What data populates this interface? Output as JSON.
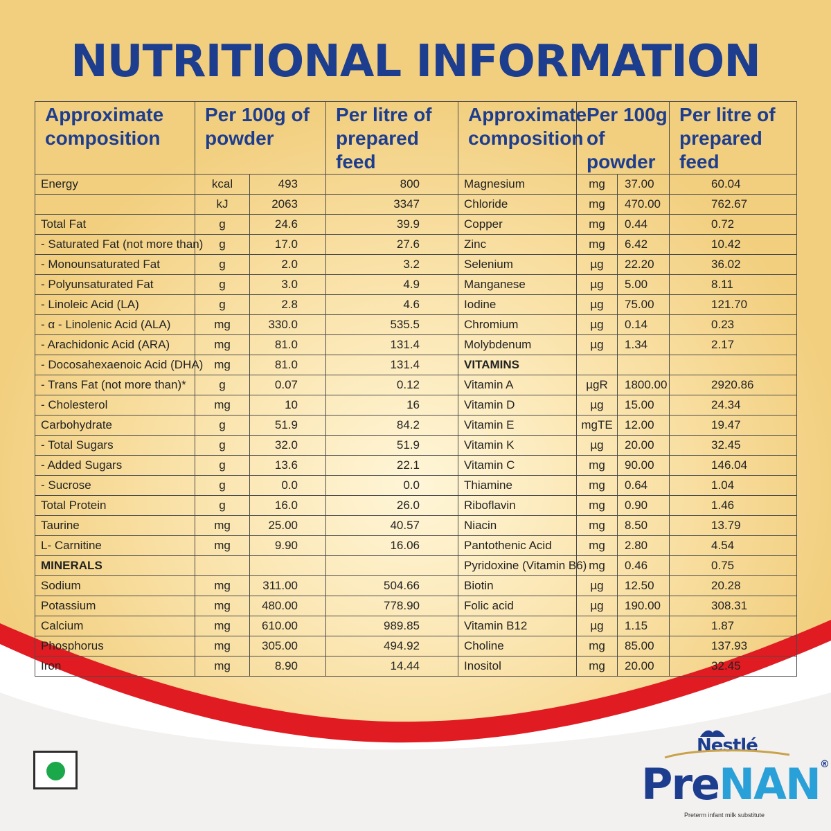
{
  "title": "NUTRITIONAL INFORMATION",
  "colors": {
    "title": "#1d3d8f",
    "accent_red": "#e11b22",
    "veg_dot": "#1aa84a",
    "gold": "#f2cf7f"
  },
  "headers": {
    "composition": "Approximate composition",
    "per100": "Per 100g of powder",
    "perlitre": "Per litre of prepared feed"
  },
  "left_rows": [
    {
      "name": "Energy",
      "unit": "kcal",
      "per100": "493",
      "perlitre": "800"
    },
    {
      "name": "",
      "unit": "kJ",
      "per100": "2063",
      "perlitre": "3347"
    },
    {
      "name": "Total Fat",
      "unit": "g",
      "per100": "24.6",
      "perlitre": "39.9"
    },
    {
      "name": "- Saturated Fat (not more than)",
      "unit": "g",
      "per100": "17.0",
      "perlitre": "27.6"
    },
    {
      "name": "- Monounsaturated Fat",
      "unit": "g",
      "per100": "2.0",
      "perlitre": "3.2"
    },
    {
      "name": "- Polyunsaturated Fat",
      "unit": "g",
      "per100": "3.0",
      "perlitre": "4.9"
    },
    {
      "name": "- Linoleic Acid (LA)",
      "unit": "g",
      "per100": "2.8",
      "perlitre": "4.6"
    },
    {
      "name": "- α - Linolenic Acid (ALA)",
      "unit": "mg",
      "per100": "330.0",
      "perlitre": "535.5"
    },
    {
      "name": "- Arachidonic Acid (ARA)",
      "unit": "mg",
      "per100": "81.0",
      "perlitre": "131.4"
    },
    {
      "name": "- Docosahexaenoic Acid (DHA)",
      "unit": "mg",
      "per100": "81.0",
      "perlitre": "131.4"
    },
    {
      "name": "- Trans Fat (not more than)*",
      "unit": "g",
      "per100": "0.07",
      "perlitre": "0.12"
    },
    {
      "name": "- Cholesterol",
      "unit": "mg",
      "per100": "10",
      "perlitre": "16"
    },
    {
      "name": "Carbohydrate",
      "unit": "g",
      "per100": "51.9",
      "perlitre": "84.2"
    },
    {
      "name": "- Total Sugars",
      "unit": "g",
      "per100": "32.0",
      "perlitre": "51.9"
    },
    {
      "name": "- Added Sugars",
      "unit": "g",
      "per100": "13.6",
      "perlitre": "22.1"
    },
    {
      "name": "- Sucrose",
      "unit": "g",
      "per100": "0.0",
      "perlitre": "0.0"
    },
    {
      "name": "Total Protein",
      "unit": "g",
      "per100": "16.0",
      "perlitre": "26.0"
    },
    {
      "name": "Taurine",
      "unit": "mg",
      "per100": "25.00",
      "perlitre": "40.57"
    },
    {
      "name": "L- Carnitine",
      "unit": "mg",
      "per100": "9.90",
      "perlitre": "16.06"
    },
    {
      "name": "MINERALS",
      "unit": "",
      "per100": "",
      "perlitre": "",
      "section": true
    },
    {
      "name": "Sodium",
      "unit": "mg",
      "per100": "311.00",
      "perlitre": "504.66"
    },
    {
      "name": "Potassium",
      "unit": "mg",
      "per100": "480.00",
      "perlitre": "778.90"
    },
    {
      "name": "Calcium",
      "unit": "mg",
      "per100": "610.00",
      "perlitre": "989.85"
    },
    {
      "name": "Phosphorus",
      "unit": "mg",
      "per100": "305.00",
      "perlitre": "494.92"
    },
    {
      "name": "Iron",
      "unit": "mg",
      "per100": "8.90",
      "perlitre": "14.44"
    }
  ],
  "right_rows": [
    {
      "name": "Magnesium",
      "unit": "mg",
      "per100": "37.00",
      "perlitre": "60.04"
    },
    {
      "name": "Chloride",
      "unit": "mg",
      "per100": "470.00",
      "perlitre": "762.67"
    },
    {
      "name": "Copper",
      "unit": "mg",
      "per100": "0.44",
      "perlitre": "0.72"
    },
    {
      "name": "Zinc",
      "unit": "mg",
      "per100": "6.42",
      "perlitre": "10.42"
    },
    {
      "name": "Selenium",
      "unit": "µg",
      "per100": "22.20",
      "perlitre": "36.02"
    },
    {
      "name": "Manganese",
      "unit": "µg",
      "per100": "5.00",
      "perlitre": "8.11"
    },
    {
      "name": "Iodine",
      "unit": "µg",
      "per100": "75.00",
      "perlitre": "121.70"
    },
    {
      "name": "Chromium",
      "unit": "µg",
      "per100": "0.14",
      "perlitre": "0.23"
    },
    {
      "name": "Molybdenum",
      "unit": "µg",
      "per100": "1.34",
      "perlitre": "2.17"
    },
    {
      "name": "VITAMINS",
      "unit": "",
      "per100": "",
      "perlitre": "",
      "section": true
    },
    {
      "name": "Vitamin A",
      "unit": "µgR",
      "per100": "1800.00",
      "perlitre": "2920.86"
    },
    {
      "name": "Vitamin D",
      "unit": "µg",
      "per100": "15.00",
      "perlitre": "24.34"
    },
    {
      "name": "Vitamin E",
      "unit": "mgTE",
      "per100": "12.00",
      "perlitre": "19.47"
    },
    {
      "name": "Vitamin K",
      "unit": "µg",
      "per100": "20.00",
      "perlitre": "32.45"
    },
    {
      "name": "Vitamin C",
      "unit": "mg",
      "per100": "90.00",
      "perlitre": "146.04"
    },
    {
      "name": "Thiamine",
      "unit": "mg",
      "per100": "0.64",
      "perlitre": "1.04"
    },
    {
      "name": "Riboflavin",
      "unit": "mg",
      "per100": "0.90",
      "perlitre": "1.46"
    },
    {
      "name": "Niacin",
      "unit": "mg",
      "per100": "8.50",
      "perlitre": "13.79"
    },
    {
      "name": "Pantothenic Acid",
      "unit": "mg",
      "per100": "2.80",
      "perlitre": "4.54"
    },
    {
      "name": "Pyridoxine (Vitamin B6)",
      "unit": "mg",
      "per100": "0.46",
      "perlitre": "0.75"
    },
    {
      "name": "Biotin",
      "unit": "µg",
      "per100": "12.50",
      "perlitre": "20.28"
    },
    {
      "name": "Folic acid",
      "unit": "µg",
      "per100": "190.00",
      "perlitre": "308.31"
    },
    {
      "name": "Vitamin B12",
      "unit": "µg",
      "per100": "1.15",
      "perlitre": "1.87"
    },
    {
      "name": "Choline",
      "unit": "mg",
      "per100": "85.00",
      "perlitre": "137.93"
    },
    {
      "name": "Inositol",
      "unit": "mg",
      "per100": "20.00",
      "perlitre": "32.45"
    }
  ],
  "brand": {
    "maker": "Nestlé",
    "product_pre": "Pre",
    "product_nan": "NAN",
    "registered": "®",
    "tagline": "Preterm infant milk substitute"
  },
  "icons": {
    "veg_mark": "veg-mark-icon",
    "nestle_nest": "nest-icon"
  }
}
